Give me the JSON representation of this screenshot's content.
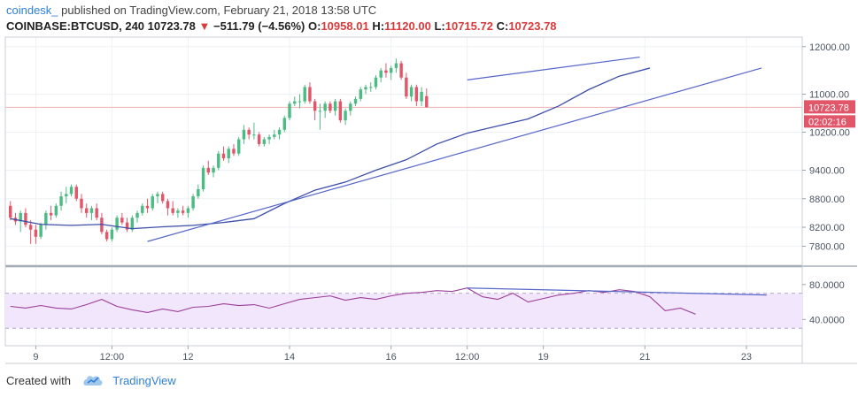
{
  "header": {
    "author": "coindesk_",
    "published": "published on TradingView.com, February 21, 2018 13:58 UTC",
    "symbol": "COINBASE:BTCUSD, 240",
    "last": "10723.78",
    "arrow": "▼",
    "change": "−511.79 (−4.56%)",
    "o_label": "O:",
    "o_value": "10958.01",
    "h_label": "H:",
    "h_value": "11120.00",
    "l_label": "L:",
    "l_value": "10715.72",
    "c_label": "C:",
    "c_value": "10723.78"
  },
  "footer": {
    "created_with": "Created with",
    "brand": "TradingView"
  },
  "colors": {
    "up": "#4dbb84",
    "down": "#e2566a",
    "ma": "#3d4fa8",
    "trend": "#5566c8",
    "rsi": "#9a3e9a",
    "rsi_band": "#f1e6fb",
    "price_line": "#e57373",
    "label_red": "#e2566a"
  },
  "chart_data": [
    {
      "type": "candlestick",
      "title": "COINBASE:BTCUSD, 240",
      "x_unit": "4h bar index",
      "ylim": [
        7400,
        12200
      ],
      "y_ticks": [
        "12000.00",
        "11000.00",
        "10200.00",
        "9400.00",
        "8800.00",
        "8200.00",
        "7800.00"
      ],
      "y_tick_values": [
        12000,
        11000,
        10200,
        9400,
        8800,
        8200,
        7800
      ],
      "x_ticks": [
        {
          "label": "9",
          "i": 5
        },
        {
          "label": "12:00",
          "i": 20
        },
        {
          "label": "12",
          "i": 35
        },
        {
          "label": "14",
          "i": 55
        },
        {
          "label": "16",
          "i": 75
        },
        {
          "label": "12:00",
          "i": 90
        },
        {
          "label": "19",
          "i": 105
        },
        {
          "label": "21",
          "i": 125
        },
        {
          "label": "23",
          "i": 145
        }
      ],
      "last_price_label": "10723.78",
      "countdown_label": "02:02:16",
      "last_price": 10723.78,
      "candles": [
        [
          8650,
          8750,
          8350,
          8400
        ],
        [
          8400,
          8500,
          8250,
          8320
        ],
        [
          8320,
          8550,
          8100,
          8500
        ],
        [
          8500,
          8600,
          8200,
          8250
        ],
        [
          8250,
          8350,
          7850,
          8150
        ],
        [
          8150,
          8250,
          7850,
          8000
        ],
        [
          8000,
          8300,
          7950,
          8250
        ],
        [
          8250,
          8550,
          8150,
          8500
        ],
        [
          8500,
          8650,
          8350,
          8450
        ],
        [
          8450,
          8700,
          8400,
          8650
        ],
        [
          8650,
          8950,
          8550,
          8850
        ],
        [
          8850,
          9050,
          8700,
          8900
        ],
        [
          8900,
          9100,
          8850,
          9050
        ],
        [
          9050,
          9100,
          8750,
          8800
        ],
        [
          8800,
          8900,
          8500,
          8600
        ],
        [
          8600,
          8700,
          8400,
          8500
        ],
        [
          8500,
          8650,
          8350,
          8600
        ],
        [
          8600,
          8700,
          8350,
          8400
        ],
        [
          8400,
          8500,
          8050,
          8100
        ],
        [
          8100,
          8150,
          7900,
          7950
        ],
        [
          7950,
          8200,
          7900,
          8150
        ],
        [
          8150,
          8450,
          8100,
          8400
        ],
        [
          8400,
          8500,
          8250,
          8300
        ],
        [
          8300,
          8400,
          8100,
          8150
        ],
        [
          8150,
          8450,
          8100,
          8400
        ],
        [
          8400,
          8550,
          8300,
          8500
        ],
        [
          8500,
          8700,
          8450,
          8650
        ],
        [
          8650,
          8800,
          8500,
          8600
        ],
        [
          8600,
          8900,
          8550,
          8850
        ],
        [
          8850,
          8950,
          8700,
          8900
        ],
        [
          8900,
          8950,
          8700,
          8750
        ],
        [
          8750,
          8800,
          8450,
          8600
        ],
        [
          8600,
          8750,
          8450,
          8500
        ],
        [
          8500,
          8600,
          8400,
          8550
        ],
        [
          8550,
          8650,
          8450,
          8500
        ],
        [
          8500,
          8650,
          8400,
          8600
        ],
        [
          8600,
          8900,
          8550,
          8850
        ],
        [
          8850,
          9100,
          8800,
          9000
        ],
        [
          9000,
          9500,
          8950,
          9450
        ],
        [
          9450,
          9600,
          9300,
          9350
        ],
        [
          9350,
          9500,
          9250,
          9450
        ],
        [
          9450,
          9800,
          9400,
          9750
        ],
        [
          9750,
          9900,
          9600,
          9650
        ],
        [
          9650,
          9900,
          9550,
          9850
        ],
        [
          9850,
          9950,
          9700,
          9750
        ],
        [
          9750,
          10100,
          9700,
          10050
        ],
        [
          10050,
          10350,
          9950,
          10250
        ],
        [
          10250,
          10300,
          10050,
          10150
        ],
        [
          10150,
          10400,
          10050,
          10150
        ],
        [
          10150,
          10200,
          9900,
          9950
        ],
        [
          9950,
          10100,
          9900,
          10050
        ],
        [
          10050,
          10150,
          9950,
          10100
        ],
        [
          10100,
          10250,
          10050,
          10150
        ],
        [
          10150,
          10300,
          10050,
          10250
        ],
        [
          10250,
          10550,
          10200,
          10500
        ],
        [
          10500,
          10850,
          10450,
          10800
        ],
        [
          10800,
          10950,
          10750,
          10850
        ],
        [
          10850,
          11000,
          10700,
          10850
        ],
        [
          10850,
          11200,
          10800,
          11150
        ],
        [
          11150,
          11250,
          10800,
          10850
        ],
        [
          10850,
          10900,
          10450,
          10650
        ],
        [
          10650,
          10800,
          10250,
          10650
        ],
        [
          10650,
          10850,
          10500,
          10800
        ],
        [
          10800,
          10850,
          10600,
          10650
        ],
        [
          10650,
          10900,
          10550,
          10850
        ],
        [
          10850,
          10900,
          10400,
          10450
        ],
        [
          10450,
          10700,
          10350,
          10650
        ],
        [
          10650,
          10850,
          10550,
          10800
        ],
        [
          10800,
          10950,
          10750,
          10900
        ],
        [
          10900,
          11150,
          10850,
          11100
        ],
        [
          11100,
          11200,
          11000,
          11150
        ],
        [
          11150,
          11250,
          11050,
          11150
        ],
        [
          11150,
          11400,
          11100,
          11350
        ],
        [
          11350,
          11550,
          11250,
          11500
        ],
        [
          11500,
          11650,
          11350,
          11450
        ],
        [
          11450,
          11600,
          11300,
          11550
        ],
        [
          11550,
          11750,
          11450,
          11650
        ],
        [
          11650,
          11700,
          11300,
          11350
        ],
        [
          11350,
          11450,
          10900,
          10950
        ],
        [
          10950,
          11200,
          10850,
          11150
        ],
        [
          11150,
          11200,
          10750,
          10850
        ],
        [
          10850,
          11150,
          10750,
          11050
        ],
        [
          10958,
          11120,
          10716,
          10724
        ]
      ],
      "ma": [
        [
          0,
          8380
        ],
        [
          6,
          8260
        ],
        [
          12,
          8240
        ],
        [
          18,
          8260
        ],
        [
          24,
          8170
        ],
        [
          30,
          8210
        ],
        [
          36,
          8240
        ],
        [
          42,
          8300
        ],
        [
          48,
          8380
        ],
        [
          54,
          8700
        ],
        [
          60,
          8980
        ],
        [
          66,
          9150
        ],
        [
          72,
          9400
        ],
        [
          78,
          9620
        ],
        [
          84,
          9950
        ],
        [
          90,
          10180
        ],
        [
          96,
          10330
        ],
        [
          102,
          10480
        ],
        [
          108,
          10750
        ],
        [
          114,
          11100
        ],
        [
          120,
          11380
        ],
        [
          126,
          11550
        ]
      ],
      "trendlines": [
        {
          "name": "support",
          "from": [
            27,
            7900
          ],
          "to": [
            148,
            11550
          ]
        },
        {
          "name": "resistance",
          "from": [
            90,
            11300
          ],
          "to": [
            124,
            11780
          ]
        }
      ],
      "rsi": {
        "ylim": [
          10,
          100
        ],
        "y_ticks": [
          "80.0000",
          "40.0000"
        ],
        "y_tick_values": [
          80,
          40
        ],
        "band": [
          70,
          30
        ],
        "values": [
          [
            0,
            55
          ],
          [
            3,
            53
          ],
          [
            6,
            56
          ],
          [
            9,
            53
          ],
          [
            12,
            52
          ],
          [
            15,
            57
          ],
          [
            18,
            63
          ],
          [
            21,
            55
          ],
          [
            24,
            51
          ],
          [
            27,
            48
          ],
          [
            30,
            52
          ],
          [
            33,
            49
          ],
          [
            36,
            54
          ],
          [
            39,
            55
          ],
          [
            42,
            58
          ],
          [
            45,
            56
          ],
          [
            48,
            57
          ],
          [
            51,
            53
          ],
          [
            54,
            58
          ],
          [
            57,
            63
          ],
          [
            60,
            65
          ],
          [
            63,
            67
          ],
          [
            66,
            62
          ],
          [
            69,
            65
          ],
          [
            72,
            63
          ],
          [
            75,
            67
          ],
          [
            78,
            70
          ],
          [
            81,
            71
          ],
          [
            84,
            73
          ],
          [
            87,
            72
          ],
          [
            90,
            76
          ],
          [
            93,
            66
          ],
          [
            96,
            63
          ],
          [
            99,
            70
          ],
          [
            102,
            60
          ],
          [
            105,
            64
          ],
          [
            108,
            68
          ],
          [
            111,
            70
          ],
          [
            114,
            73
          ],
          [
            117,
            71
          ],
          [
            120,
            74
          ],
          [
            123,
            72
          ],
          [
            126,
            66
          ],
          [
            129,
            50
          ],
          [
            132,
            53
          ],
          [
            135,
            46
          ]
        ],
        "divergence": {
          "from": [
            90,
            76
          ],
          "to": [
            149,
            68
          ]
        }
      }
    }
  ]
}
